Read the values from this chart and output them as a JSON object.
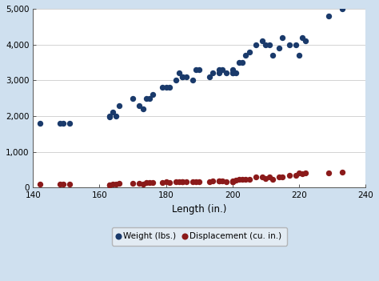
{
  "xlabel": "Length (in.)",
  "xlim": [
    140,
    240
  ],
  "ylim": [
    0,
    5000
  ],
  "xticks": [
    140,
    160,
    180,
    200,
    220,
    240
  ],
  "yticks": [
    0,
    1000,
    2000,
    3000,
    4000,
    5000
  ],
  "ytick_labels": [
    "0",
    "1,000",
    "2,000",
    "3,000",
    "4,000",
    "5,000"
  ],
  "background_color": "#cfe0ef",
  "plot_bg_color": "#ffffff",
  "weight_color": "#1a3a6b",
  "displacement_color": "#8b1a1a",
  "marker_size": 28,
  "weight_label": "Weight (lbs.)",
  "disp_label": "Displacement (cu. in.)",
  "weight_length": [
    142,
    148,
    149,
    151,
    163,
    163,
    164,
    165,
    166,
    170,
    172,
    173,
    174,
    175,
    176,
    179,
    180,
    181,
    183,
    184,
    185,
    185,
    186,
    188,
    189,
    190,
    193,
    194,
    196,
    196,
    197,
    198,
    200,
    200,
    200,
    201,
    202,
    203,
    204,
    205,
    207,
    209,
    210,
    211,
    212,
    214,
    215,
    217,
    219,
    220,
    221,
    222,
    229,
    233
  ],
  "weight_value": [
    1800,
    1800,
    1800,
    1800,
    2000,
    1980,
    2100,
    2000,
    2300,
    2500,
    2300,
    2200,
    2500,
    2500,
    2600,
    2800,
    2800,
    2800,
    3000,
    3200,
    3100,
    3100,
    3100,
    3000,
    3300,
    3300,
    3100,
    3200,
    3300,
    3200,
    3300,
    3200,
    3200,
    3300,
    3200,
    3200,
    3500,
    3500,
    3700,
    3800,
    4000,
    4100,
    4000,
    4000,
    3700,
    3900,
    4200,
    4000,
    4000,
    3700,
    4200,
    4100,
    4800,
    5000
  ],
  "disp_length": [
    142,
    148,
    149,
    151,
    163,
    163,
    164,
    165,
    166,
    170,
    172,
    173,
    174,
    175,
    176,
    179,
    180,
    181,
    183,
    184,
    185,
    185,
    186,
    188,
    189,
    190,
    193,
    194,
    196,
    196,
    197,
    198,
    200,
    200,
    200,
    201,
    202,
    203,
    204,
    205,
    207,
    209,
    210,
    211,
    212,
    214,
    215,
    217,
    219,
    220,
    221,
    222,
    229,
    233
  ],
  "disp_value": [
    97,
    90,
    91,
    98,
    79,
    68,
    86,
    98,
    121,
    120,
    110,
    98,
    130,
    130,
    140,
    140,
    151,
    140,
    163,
    165,
    165,
    163,
    163,
    151,
    168,
    171,
    163,
    183,
    183,
    183,
    180,
    165,
    171,
    180,
    168,
    196,
    231,
    231,
    231,
    231,
    302,
    302,
    260,
    304,
    231,
    305,
    305,
    350,
    350,
    400,
    380,
    400,
    400,
    425
  ]
}
